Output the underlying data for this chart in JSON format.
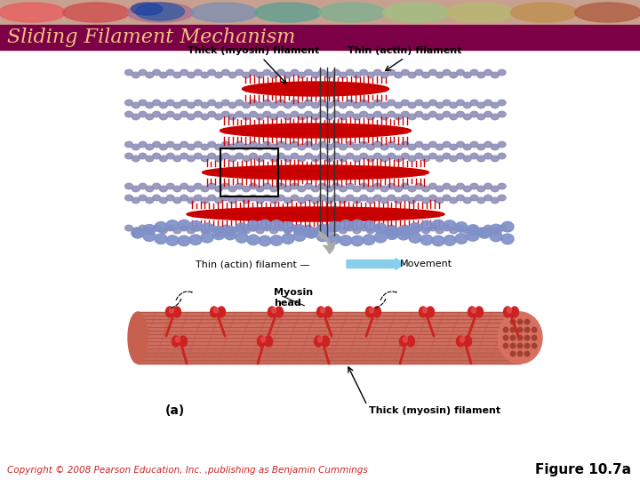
{
  "title": "Sliding Filament Mechanism",
  "title_bg_color": "#7B0045",
  "title_text_color": "#F0C080",
  "title_fontsize": 16,
  "copyright_text": "Copyright © 2008 Pearson Education, Inc. ,publishing as Benjamin Cummings",
  "copyright_fontsize": 7.5,
  "figure_label": "Figure 10.7a",
  "figure_label_fontsize": 11,
  "bg_color": "#FFFFFF",
  "thick_myosin_label": "Thick (myosin) filament",
  "thin_actin_label": "Thin (actin) filament",
  "movement_label": "Movement",
  "myosin_head_label": "Myosin\nhead",
  "thick_label_bottom": "Thick (myosin) filament",
  "part_label": "(a)",
  "sarcomere_red": "#CC0000",
  "actin_blue": "#8090C8",
  "myosin_filament_color": "#D4705A",
  "arrow_gray": "#888888",
  "movement_arrow_color": "#87CEEB"
}
